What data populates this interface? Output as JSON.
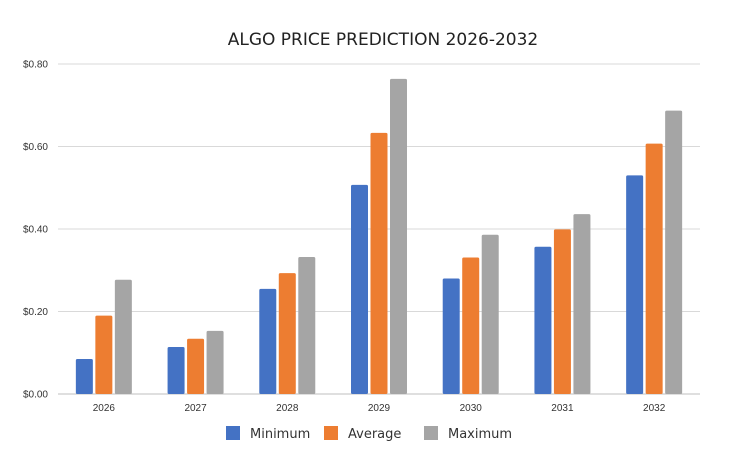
{
  "chart_data": {
    "type": "bar",
    "title": "ALGO PRICE PREDICTION 2026-2032",
    "categories": [
      "2026",
      "2027",
      "2028",
      "2029",
      "2030",
      "2031",
      "2032"
    ],
    "series": [
      {
        "name": "Minimum",
        "color": "#4472C4",
        "values": [
          0.085,
          0.114,
          0.255,
          0.507,
          0.28,
          0.357,
          0.53
        ]
      },
      {
        "name": "Average",
        "color": "#ED7D31",
        "values": [
          0.19,
          0.134,
          0.293,
          0.633,
          0.331,
          0.399,
          0.607
        ]
      },
      {
        "name": "Maximum",
        "color": "#A5A5A5",
        "values": [
          0.277,
          0.153,
          0.332,
          0.764,
          0.386,
          0.436,
          0.687
        ]
      }
    ],
    "yticks": [
      "$0.00",
      "$0.20",
      "$0.40",
      "$0.60",
      "$0.80"
    ],
    "ylim": [
      0,
      0.8
    ],
    "grid": true,
    "legend_position": "bottom",
    "xlabel": "",
    "ylabel": ""
  }
}
